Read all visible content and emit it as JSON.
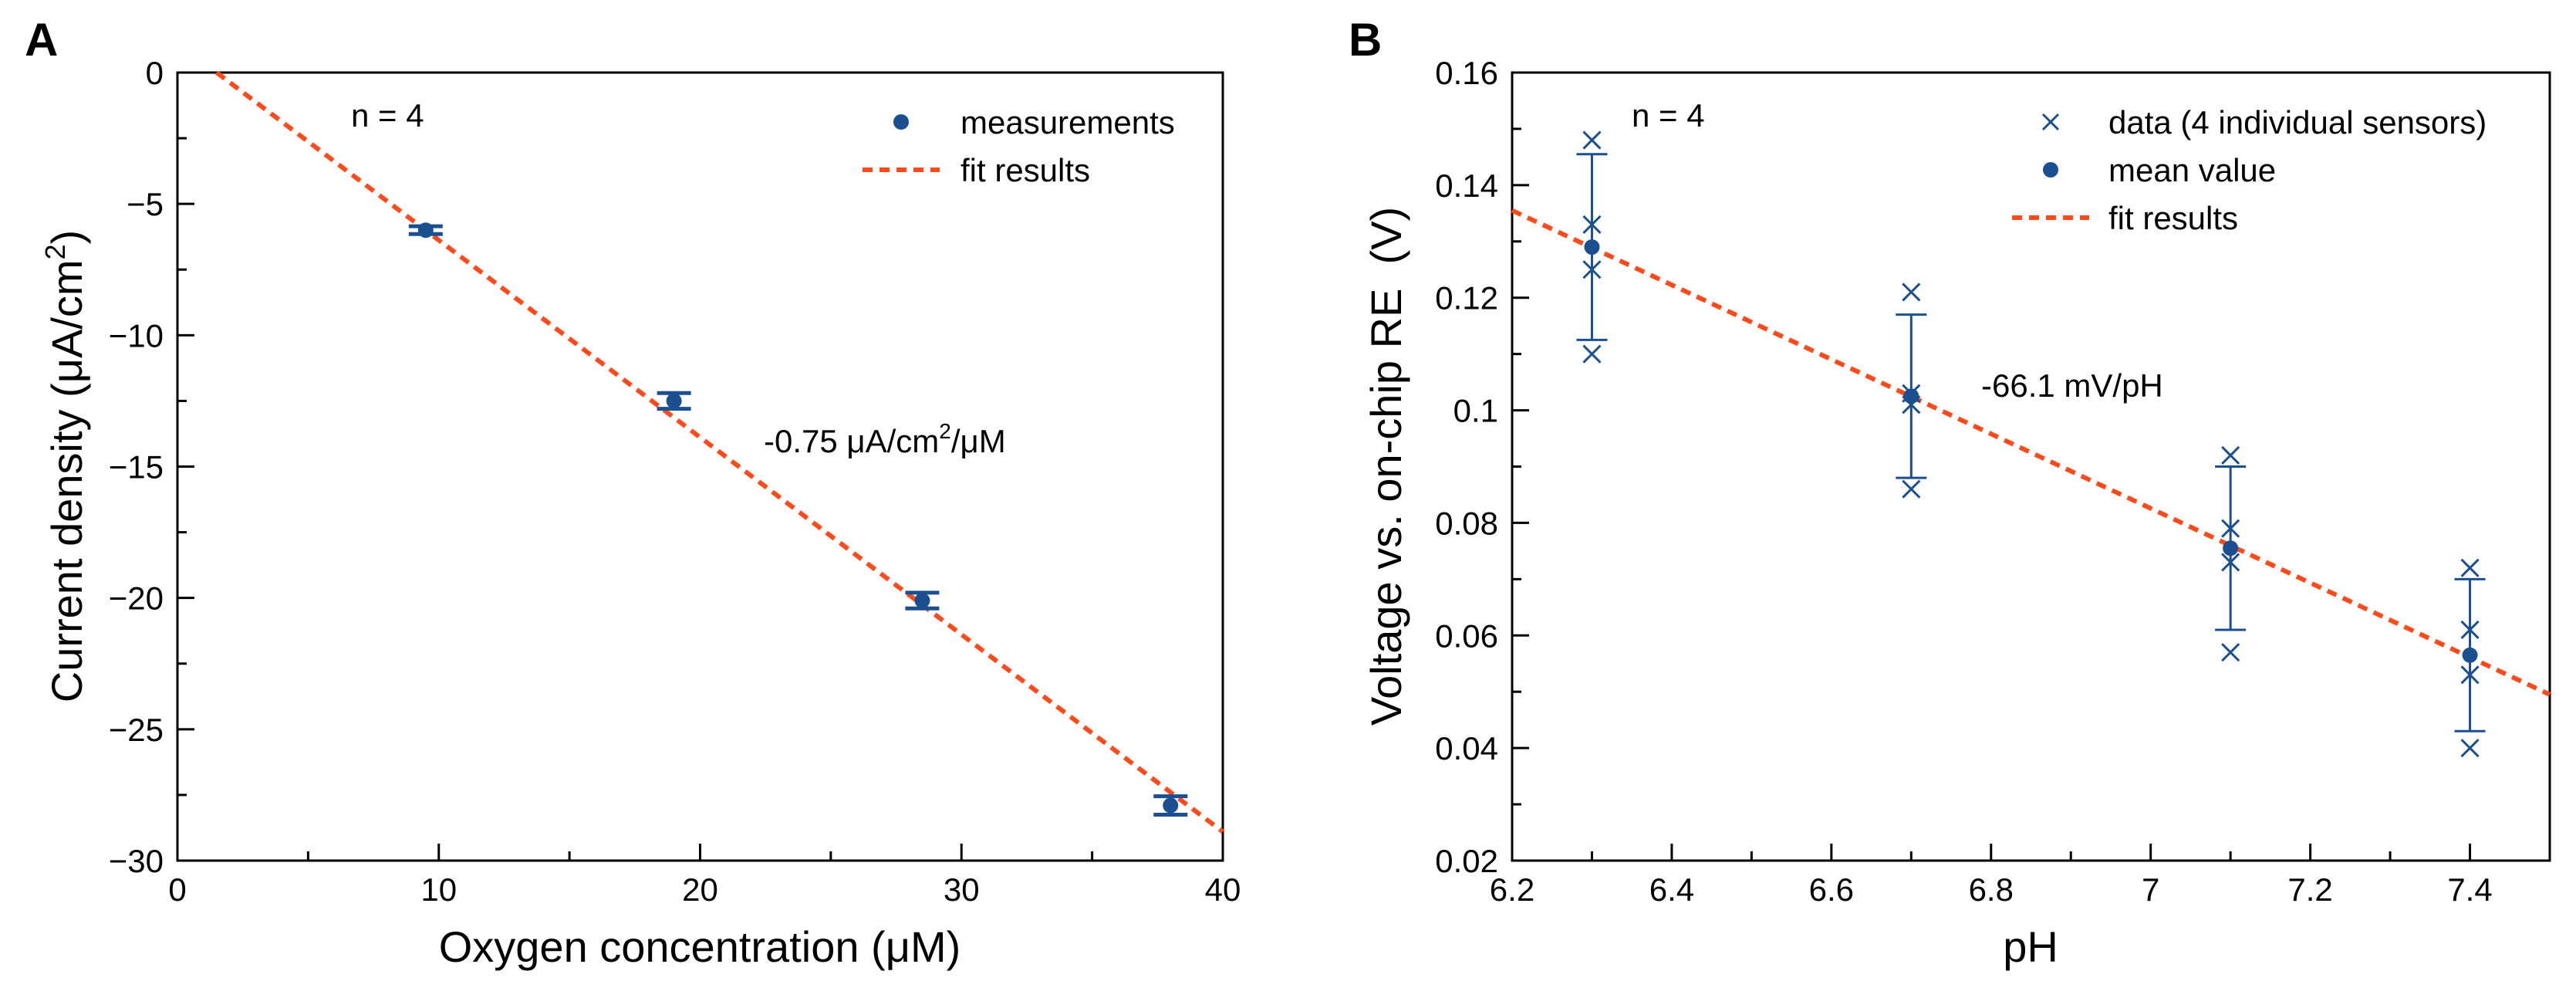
{
  "colors": {
    "marker": "#1b4f8f",
    "fit": "#ff4a1c",
    "axis": "#000000"
  },
  "chart_data": [
    {
      "panel_label": "A",
      "type": "scatter",
      "xlabel": "Oxygen concentration (μM)",
      "ylabel_main": "Current density (μA/cm",
      "ylabel_sup": "2",
      "ylabel_end": ")",
      "xlim": [
        0,
        40
      ],
      "ylim": [
        -30,
        0
      ],
      "x_ticks": [
        0,
        10,
        20,
        30,
        40
      ],
      "x_tick_labels": [
        "0",
        "10",
        "20",
        "30",
        "40"
      ],
      "x_minor_step": 5,
      "y_ticks": [
        0,
        -5,
        -10,
        -15,
        -20,
        -25,
        -30
      ],
      "y_tick_labels": [
        "0",
        "−5",
        "−10",
        "−15",
        "−20",
        "−25",
        "−30"
      ],
      "y_minor_step": 2.5,
      "sample_note": "n = 4",
      "slope_main": "-0.75 μA/cm",
      "slope_sup": "2",
      "slope_end": "/μM",
      "series": [
        {
          "name": "measurements",
          "kind": "errorbar",
          "x": [
            9.5,
            19,
            28.5,
            38
          ],
          "y": [
            -6.0,
            -12.5,
            -20.1,
            -27.9
          ],
          "err": [
            0.15,
            0.3,
            0.3,
            0.35
          ]
        },
        {
          "name": "fit results",
          "kind": "fit",
          "x": [
            1.5,
            40
          ],
          "y": [
            0.0,
            -28.9
          ]
        }
      ],
      "legend": {
        "position": "top-right",
        "entries": [
          "measurements",
          "fit results"
        ]
      }
    },
    {
      "panel_label": "B",
      "type": "scatter",
      "xlabel": "pH",
      "ylabel": "Voltage vs. on-chip RE  (V)",
      "xlim": [
        6.2,
        7.5
      ],
      "ylim": [
        0.02,
        0.16
      ],
      "x_ticks": [
        6.2,
        6.4,
        6.6,
        6.8,
        7.0,
        7.2,
        7.4
      ],
      "x_tick_labels": [
        "6.2",
        "6.4",
        "6.6",
        "6.8",
        "7",
        "7.2",
        "7.4"
      ],
      "x_minor_step": 0.1,
      "y_ticks": [
        0.02,
        0.04,
        0.06,
        0.08,
        0.1,
        0.12,
        0.14,
        0.16
      ],
      "y_tick_labels": [
        "0.02",
        "0.04",
        "0.06",
        "0.08",
        "0.1",
        "0.12",
        "0.14",
        "0.16"
      ],
      "y_minor_step": 0.01,
      "sample_note": "n = 4",
      "slope_label": "-66.1 mV/pH",
      "series": [
        {
          "name": "data (4 individual sensors)",
          "kind": "cross",
          "x": [
            6.3,
            6.3,
            6.3,
            6.3,
            6.7,
            6.7,
            6.7,
            6.7,
            7.1,
            7.1,
            7.1,
            7.1,
            7.4,
            7.4,
            7.4,
            7.4
          ],
          "y": [
            0.148,
            0.133,
            0.125,
            0.11,
            0.121,
            0.103,
            0.101,
            0.086,
            0.092,
            0.079,
            0.073,
            0.057,
            0.072,
            0.061,
            0.053,
            0.04
          ]
        },
        {
          "name": "mean value",
          "kind": "errorbar",
          "x": [
            6.3,
            6.7,
            7.1,
            7.4
          ],
          "y": [
            0.129,
            0.1025,
            0.0755,
            0.0565
          ],
          "err": [
            0.0165,
            0.0145,
            0.0145,
            0.0135
          ]
        },
        {
          "name": "fit results",
          "kind": "fit",
          "x": [
            6.2,
            7.5
          ],
          "y": [
            0.1355,
            0.0495
          ]
        }
      ],
      "legend": {
        "position": "top-right",
        "entries": [
          "data (4 individual sensors)",
          "mean value",
          "fit results"
        ]
      }
    }
  ]
}
